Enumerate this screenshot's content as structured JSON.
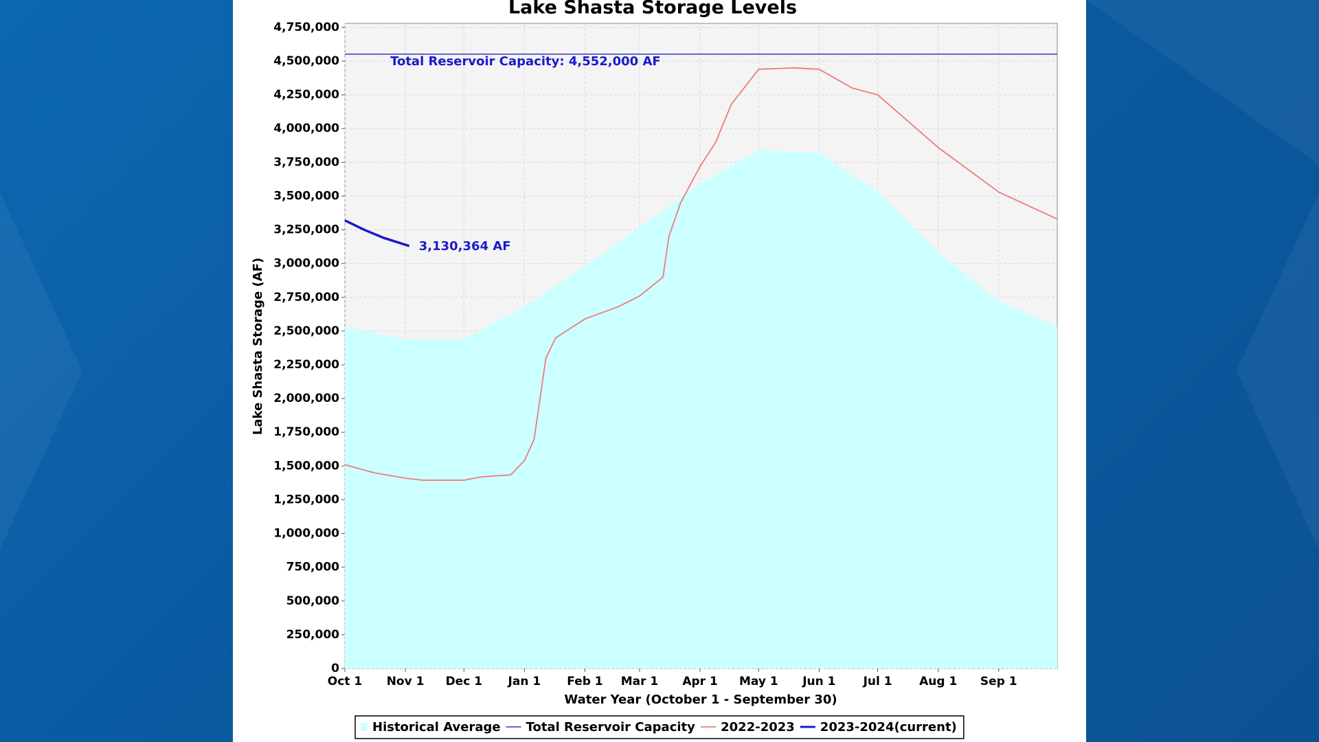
{
  "chart_data": {
    "type": "line",
    "title": "Lake Shasta Storage Levels",
    "x_label": "Water Year (October 1 - September 30)",
    "y_label": "Lake Shasta Storage (AF)",
    "xlim": [
      0,
      365
    ],
    "xticks": [
      {
        "value": 0,
        "label": "Oct 1"
      },
      {
        "value": 31,
        "label": "Nov 1"
      },
      {
        "value": 61,
        "label": "Dec 1"
      },
      {
        "value": 92,
        "label": "Jan 1"
      },
      {
        "value": 123,
        "label": "Feb 1"
      },
      {
        "value": 151,
        "label": "Mar 1"
      },
      {
        "value": 182,
        "label": "Apr 1"
      },
      {
        "value": 212,
        "label": "May 1"
      },
      {
        "value": 243,
        "label": "Jun 1"
      },
      {
        "value": 273,
        "label": "Jul 1"
      },
      {
        "value": 304,
        "label": "Aug 1"
      },
      {
        "value": 335,
        "label": "Sep 1"
      }
    ],
    "ylim": [
      0,
      4780000
    ],
    "yticks": [
      0,
      {
        "value": 250000,
        "label": "250,000"
      },
      {
        "value": 500000,
        "label": "500,000"
      },
      {
        "value": 750000,
        "label": "750,000"
      },
      {
        "value": 1000000,
        "label": "1,000,000"
      },
      {
        "value": 1250000,
        "label": "1,250,000"
      },
      {
        "value": 1500000,
        "label": "1,500,000"
      },
      {
        "value": 1750000,
        "label": "1,750,000"
      },
      {
        "value": 2000000,
        "label": "2,000,000"
      },
      {
        "value": 2250000,
        "label": "2,250,000"
      },
      {
        "value": 2500000,
        "label": "2,500,000"
      },
      {
        "value": 2750000,
        "label": "2,750,000"
      },
      {
        "value": 3000000,
        "label": "3,000,000"
      },
      {
        "value": 3250000,
        "label": "3,250,000"
      },
      {
        "value": 3500000,
        "label": "3,500,000"
      },
      {
        "value": 3750000,
        "label": "3,750,000"
      },
      {
        "value": 4000000,
        "label": "4,000,000"
      },
      {
        "value": 4250000,
        "label": "4,250,000"
      },
      {
        "value": 4500000,
        "label": "4,500,000"
      },
      {
        "value": 4750000,
        "label": "4,750,000"
      }
    ],
    "grid": true,
    "series": [
      {
        "name": "Historical Average",
        "kind": "area",
        "color": "#ccffff",
        "x": [
          0,
          31,
          61,
          92,
          123,
          151,
          182,
          212,
          243,
          273,
          304,
          335,
          365
        ],
        "values": [
          2530000,
          2440000,
          2440000,
          2680000,
          2980000,
          3270000,
          3590000,
          3840000,
          3820000,
          3530000,
          3080000,
          2720000,
          2530000
        ]
      },
      {
        "name": "Total Reservoir Capacity",
        "kind": "line",
        "color": "#3333cc",
        "width": 1.5,
        "x": [
          0,
          365
        ],
        "values": [
          4552000,
          4552000
        ]
      },
      {
        "name": "2022-2023",
        "kind": "line",
        "color": "#f07a7a",
        "width": 1.8,
        "x": [
          0,
          15,
          31,
          40,
          61,
          70,
          85,
          92,
          97,
          103,
          108,
          123,
          140,
          151,
          163,
          166,
          172,
          182,
          190,
          198,
          212,
          230,
          243,
          260,
          273,
          304,
          335,
          365
        ],
        "values": [
          1510000,
          1450000,
          1410000,
          1395000,
          1395000,
          1420000,
          1435000,
          1540000,
          1700000,
          2300000,
          2450000,
          2590000,
          2680000,
          2760000,
          2900000,
          3200000,
          3450000,
          3720000,
          3900000,
          4180000,
          4440000,
          4450000,
          4440000,
          4300000,
          4250000,
          3860000,
          3530000,
          3330000
        ]
      },
      {
        "name": "2023-2024(current)",
        "kind": "line",
        "color": "#1a1acc",
        "width": 3.5,
        "x": [
          0,
          10,
          20,
          33
        ],
        "values": [
          3320000,
          3250000,
          3190000,
          3130364
        ]
      }
    ],
    "annotations": [
      {
        "text": "Total Reservoir Capacity: 4,552,000 AF",
        "x": 12,
        "value": 4552000
      },
      {
        "text": "3,130,364 AF",
        "x": 33,
        "value": 3130364
      }
    ]
  }
}
